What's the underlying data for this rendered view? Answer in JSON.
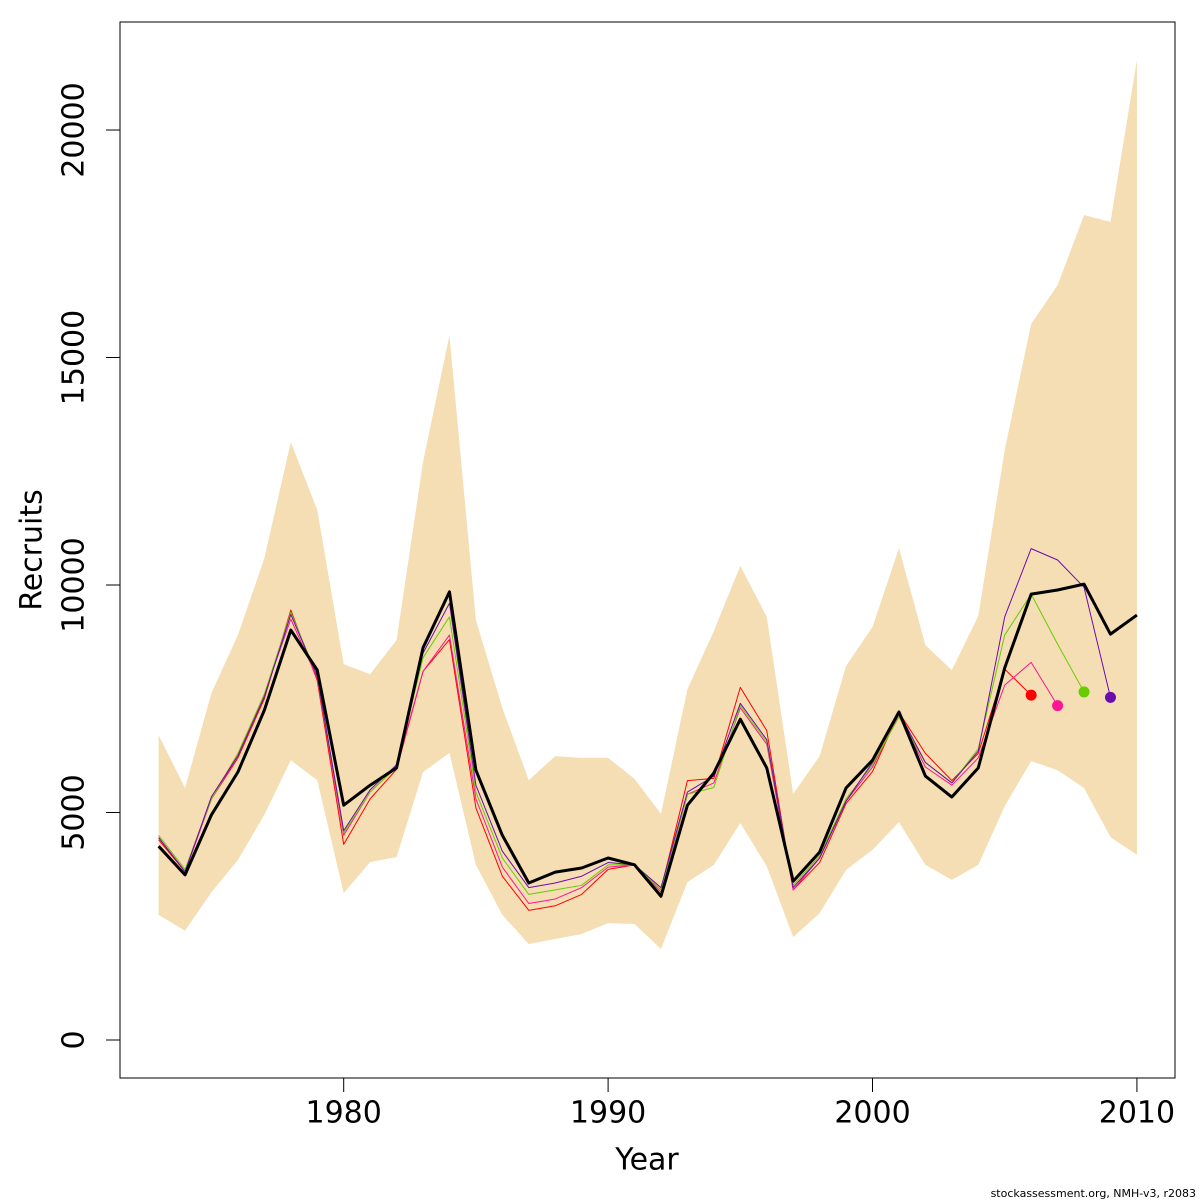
{
  "chart_data": {
    "type": "line",
    "x_label": "Year",
    "y_label": "Recruits",
    "footer": "stockassessment.org, NMH-v3, r2083",
    "x": [
      1973,
      1974,
      1975,
      1976,
      1977,
      1978,
      1979,
      1980,
      1981,
      1982,
      1983,
      1984,
      1985,
      1986,
      1987,
      1988,
      1989,
      1990,
      1991,
      1992,
      1993,
      1994,
      1995,
      1996,
      1997,
      1998,
      1999,
      2000,
      2001,
      2002,
      2003,
      2004,
      2005,
      2006,
      2007,
      2008,
      2009,
      2010
    ],
    "xlim": [
      1971.54,
      2011.44
    ],
    "ylim": [
      -835,
      22374
    ],
    "xticks": [
      1980,
      1990,
      2000,
      2010
    ],
    "yticks": [
      0,
      5000,
      10000,
      15000,
      20000
    ],
    "band": {
      "color": "#f5deb3",
      "upper": [
        6700,
        5540,
        7630,
        8900,
        10590,
        13140,
        11650,
        8260,
        8040,
        8790,
        12700,
        15490,
        9230,
        7300,
        5710,
        6240,
        6200,
        6200,
        5740,
        4970,
        7710,
        8990,
        10420,
        9300,
        5410,
        6240,
        8220,
        9080,
        10810,
        8680,
        8130,
        9320,
        12970,
        15740,
        16590,
        18130,
        17980,
        21540
      ],
      "lower": [
        2750,
        2400,
        3250,
        3960,
        4950,
        6150,
        5710,
        3230,
        3910,
        4020,
        5890,
        6310,
        3850,
        2750,
        2110,
        2220,
        2330,
        2570,
        2550,
        2000,
        3470,
        3850,
        4770,
        3820,
        2260,
        2790,
        3740,
        4180,
        4790,
        3850,
        3520,
        3850,
        5140,
        6130,
        5930,
        5540,
        4460,
        4070
      ]
    },
    "series": [
      {
        "color": "#ff0000",
        "width": 1,
        "end_point": true,
        "values": [
          4400,
          3700,
          5300,
          6200,
          7500,
          9450,
          7900,
          4300,
          5300,
          5950,
          8100,
          8800,
          5100,
          3600,
          2850,
          2950,
          3200,
          3750,
          3850,
          3300,
          5700,
          5750,
          7750,
          6800,
          3300,
          3900,
          5200,
          5900,
          7200,
          6300,
          5700,
          6300,
          8150,
          7580,
          null,
          null,
          null,
          null
        ]
      },
      {
        "color": "#ff1493",
        "width": 1,
        "end_point": true,
        "values": [
          4450,
          3700,
          5300,
          6250,
          7600,
          9250,
          7950,
          4500,
          5450,
          6000,
          8100,
          8900,
          5300,
          3800,
          3000,
          3100,
          3350,
          3800,
          3850,
          3250,
          5400,
          5650,
          7300,
          6500,
          3300,
          4000,
          5250,
          6000,
          7150,
          6000,
          5600,
          6200,
          7800,
          8300,
          7350,
          null,
          null,
          null
        ]
      },
      {
        "color": "#66cc00",
        "width": 1,
        "end_point": true,
        "values": [
          4500,
          3750,
          5300,
          6300,
          7600,
          9400,
          8000,
          4550,
          5450,
          6000,
          8400,
          9300,
          5450,
          4000,
          3200,
          3300,
          3400,
          3850,
          3850,
          3300,
          5400,
          5550,
          7350,
          6550,
          3400,
          4050,
          5300,
          6050,
          7100,
          6100,
          5650,
          6400,
          8900,
          9800,
          8700,
          7650,
          null,
          null
        ]
      },
      {
        "color": "#6a0dad",
        "width": 1,
        "end_point": true,
        "values": [
          4450,
          3700,
          5350,
          6250,
          7550,
          9350,
          8000,
          4600,
          5500,
          6050,
          8500,
          9600,
          5600,
          4150,
          3350,
          3450,
          3600,
          3900,
          3850,
          3350,
          5450,
          5800,
          7400,
          6600,
          3350,
          4000,
          5250,
          6100,
          7200,
          6100,
          5650,
          6350,
          9300,
          10800,
          10550,
          9950,
          7530,
          null
        ]
      },
      {
        "color": "#000000",
        "width": 3,
        "end_point": false,
        "values": [
          4260,
          3630,
          4950,
          5890,
          7250,
          9010,
          8130,
          5160,
          5600,
          5980,
          8620,
          9850,
          5930,
          4500,
          3450,
          3690,
          3780,
          4000,
          3850,
          3160,
          5160,
          5870,
          7050,
          5980,
          3490,
          4130,
          5540,
          6150,
          7210,
          5800,
          5340,
          5980,
          8180,
          9800,
          9890,
          10020,
          8920,
          9340
        ]
      }
    ]
  }
}
